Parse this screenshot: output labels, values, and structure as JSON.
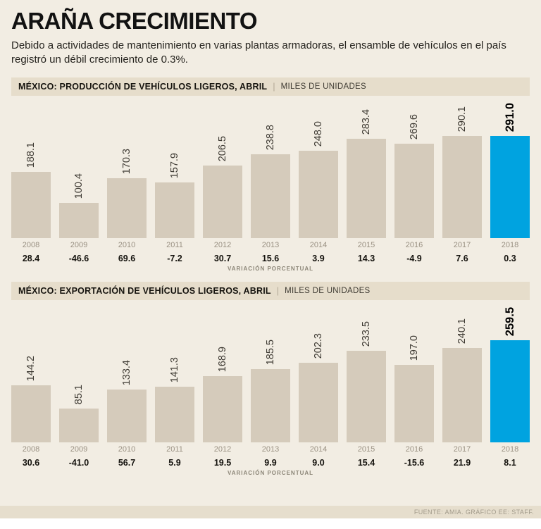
{
  "page": {
    "title": "ARAÑA CRECIMIENTO",
    "subtitle": "Debido a actividades de mantenimiento en varias plantas armadoras, el ensamble de vehículos en el país registró un débil crecimiento de 0.3%.",
    "footer": "FUENTE: AMIA. GRÁFICO EE: STAFF."
  },
  "colors": {
    "background": "#f2ede3",
    "section_header_bg": "#e6ddcb",
    "bar": "#d5cbbb",
    "highlight": "#00a3e0"
  },
  "chart_data": [
    {
      "type": "bar",
      "title": "MÉXICO: PRODUCCIÓN DE VEHÍCULOS LIGEROS, ABRIL",
      "unit": "MILES DE UNIDADES",
      "categories": [
        "2008",
        "2009",
        "2010",
        "2011",
        "2012",
        "2013",
        "2014",
        "2015",
        "2016",
        "2017",
        "2018"
      ],
      "values": [
        188.1,
        100.4,
        170.3,
        157.9,
        206.5,
        238.8,
        248.0,
        283.4,
        269.6,
        290.1,
        291.0
      ],
      "value_labels": [
        "188.1",
        "100.4",
        "170.3",
        "157.9",
        "206.5",
        "238.8",
        "248.0",
        "283.4",
        "269.6",
        "290.1",
        "291.0"
      ],
      "variation_pct": [
        28.4,
        -46.6,
        69.6,
        -7.2,
        30.7,
        15.6,
        3.9,
        14.3,
        -4.9,
        7.6,
        0.3
      ],
      "variation_labels": [
        "28.4",
        "-46.6",
        "69.6",
        "-7.2",
        "30.7",
        "15.6",
        "3.9",
        "14.3",
        "-4.9",
        "7.6",
        "0.3"
      ],
      "variation_label": "VARIACIÓN PORCENTUAL",
      "highlight_index": 10,
      "ylim": [
        0,
        300
      ],
      "legend": "none",
      "grid": false
    },
    {
      "type": "bar",
      "title": "MÉXICO: EXPORTACIÓN DE VEHÍCULOS LIGEROS, ABRIL",
      "unit": "MILES DE UNIDADES",
      "categories": [
        "2008",
        "2009",
        "2010",
        "2011",
        "2012",
        "2013",
        "2014",
        "2015",
        "2016",
        "2017",
        "2018"
      ],
      "values": [
        144.2,
        85.1,
        133.4,
        141.3,
        168.9,
        185.5,
        202.3,
        233.5,
        197.0,
        240.1,
        259.5
      ],
      "value_labels": [
        "144.2",
        "85.1",
        "133.4",
        "141.3",
        "168.9",
        "185.5",
        "202.3",
        "233.5",
        "197.0",
        "240.1",
        "259.5"
      ],
      "variation_pct": [
        30.6,
        -41.0,
        56.7,
        5.9,
        19.5,
        9.9,
        9.0,
        15.4,
        -15.6,
        21.9,
        8.1
      ],
      "variation_labels": [
        "30.6",
        "-41.0",
        "56.7",
        "5.9",
        "19.5",
        "9.9",
        "9.0",
        "15.4",
        "-15.6",
        "21.9",
        "8.1"
      ],
      "variation_label": "VARIACIÓN PORCENTUAL",
      "highlight_index": 10,
      "ylim": [
        0,
        270
      ],
      "legend": "none",
      "grid": false
    }
  ]
}
